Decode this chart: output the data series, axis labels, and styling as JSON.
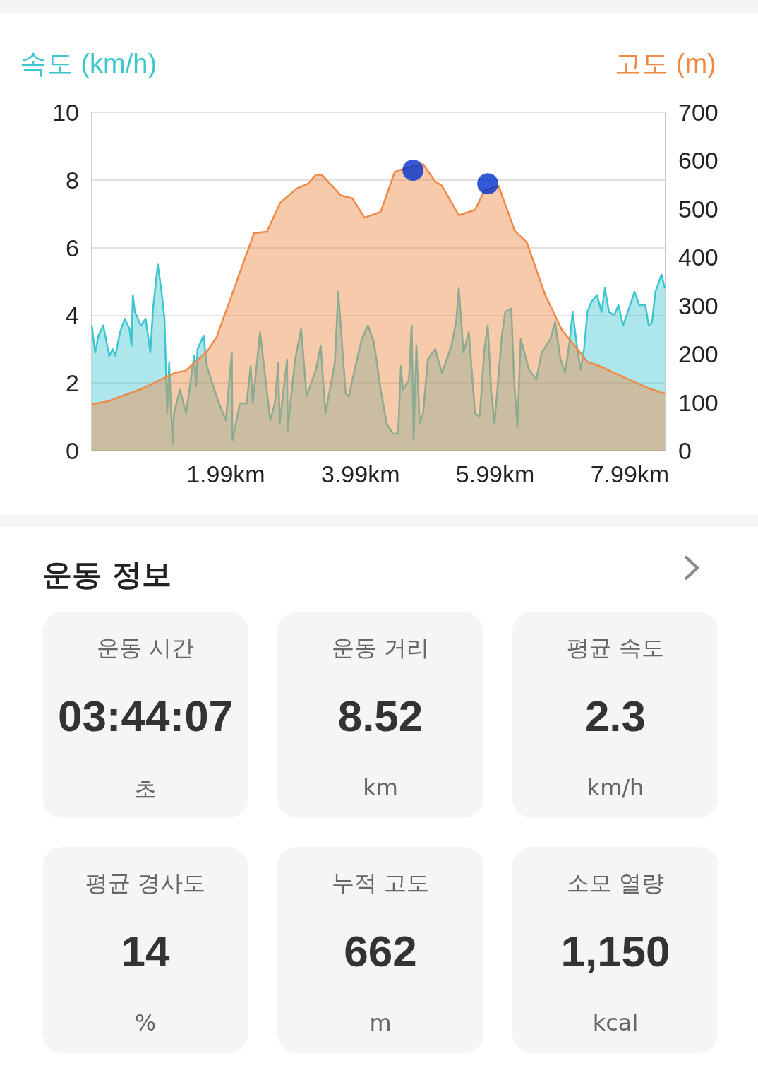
{
  "chart_data": [
    {
      "type": "area",
      "ylabel": "속도 (km/h)",
      "y2label": "고도 (m)",
      "xlim": [
        0,
        8.52
      ],
      "xticks": [
        {
          "value": 1.99,
          "label": "1.99km"
        },
        {
          "value": 3.99,
          "label": "3.99km"
        },
        {
          "value": 5.99,
          "label": "5.99km"
        },
        {
          "value": 7.99,
          "label": "7.99km"
        }
      ],
      "ylim": [
        0,
        10
      ],
      "yticks": [
        0,
        2,
        4,
        6,
        8,
        10
      ],
      "y2lim": [
        0,
        700
      ],
      "y2ticks": [
        0,
        100,
        200,
        300,
        400,
        500,
        600,
        700
      ],
      "grid": "y",
      "marker": "none",
      "series": [
        {
          "type": "area",
          "color": "#3cc6d0",
          "x": [
            0,
            0.05,
            0.1,
            0.17,
            0.26,
            0.31,
            0.35,
            0.42,
            0.49,
            0.56,
            0.59,
            0.61,
            0.64,
            0.73,
            0.8,
            0.87,
            0.91,
            0.98,
            1.03,
            1.08,
            1.12,
            1.15,
            1.2,
            1.22,
            1.31,
            1.4,
            1.52,
            1.55,
            1.57,
            1.66,
            1.71,
            1.82,
            1.89,
            1.99,
            2.08,
            2.09,
            2.2,
            2.3,
            2.36,
            2.39,
            2.5,
            2.65,
            2.72,
            2.77,
            2.79,
            2.9,
            2.91,
            2.97,
            3.02,
            3.11,
            3.19,
            3.33,
            3.4,
            3.47,
            3.61,
            3.66,
            3.77,
            3.82,
            3.87,
            4.01,
            4.1,
            4.19,
            4.29,
            4.38,
            4.47,
            4.55,
            4.59,
            4.62,
            4.71,
            4.75,
            4.78,
            4.82,
            4.87,
            4.92,
            4.99,
            5.1,
            5.2,
            5.34,
            5.41,
            5.45,
            5.52,
            5.6,
            5.69,
            5.76,
            5.83,
            5.88,
            5.93,
            5.98,
            6.09,
            6.14,
            6.23,
            6.27,
            6.32,
            6.37,
            6.49,
            6.6,
            6.68,
            6.81,
            6.88,
            6.96,
            7.03,
            7.1,
            7.14,
            7.21,
            7.26,
            7.31,
            7.36,
            7.42,
            7.5,
            7.57,
            7.62,
            7.68,
            7.76,
            7.82,
            7.89,
            7.96,
            8.06,
            8.13,
            8.22,
            8.27,
            8.32,
            8.37,
            8.46,
            8.51
          ],
          "values": [
            3.7,
            2.9,
            3.4,
            3.7,
            2.8,
            3.0,
            2.8,
            3.5,
            3.9,
            3.6,
            3.1,
            4.6,
            4.1,
            3.7,
            3.9,
            2.9,
            4.2,
            5.5,
            4.8,
            3.9,
            1.1,
            2.6,
            0.2,
            1.1,
            1.8,
            1.1,
            2.8,
            1.9,
            3.0,
            3.4,
            2.5,
            1.8,
            1.4,
            0.9,
            2.9,
            0.3,
            1.4,
            1.4,
            2.5,
            1.4,
            3.5,
            0.9,
            1.4,
            2.6,
            0.8,
            2.7,
            0.6,
            1.8,
            2.7,
            3.6,
            1.6,
            2.4,
            3.1,
            1.1,
            2.6,
            4.7,
            1.7,
            1.6,
            2.1,
            3.3,
            3.7,
            3.2,
            1.8,
            0.8,
            0.5,
            0.5,
            2.5,
            1.8,
            2.1,
            3.7,
            0.3,
            3.1,
            0.8,
            1.1,
            2.7,
            3.0,
            2.3,
            3.1,
            3.8,
            4.8,
            2.9,
            3.5,
            1.1,
            1.0,
            3.0,
            3.7,
            1.8,
            0.8,
            3.4,
            4.1,
            4.2,
            2.1,
            0.7,
            3.3,
            2.4,
            2.1,
            2.9,
            3.3,
            3.8,
            2.7,
            2.3,
            3.3,
            4.1,
            3.0,
            2.4,
            3.0,
            4.1,
            4.4,
            4.6,
            4.1,
            4.8,
            4.1,
            4.0,
            4.3,
            3.7,
            4.1,
            4.7,
            4.3,
            4.3,
            3.7,
            3.8,
            4.7,
            5.2,
            4.8
          ]
        },
        {
          "type": "area",
          "color": "#ee8a48",
          "axis": "y2",
          "x": [
            0,
            0.24,
            0.76,
            1.23,
            1.39,
            1.71,
            1.85,
            2.06,
            2.27,
            2.41,
            2.6,
            2.8,
            3.04,
            3.21,
            3.33,
            3.42,
            3.7,
            3.87,
            4.05,
            4.29,
            4.5,
            4.61,
            4.92,
            5.1,
            5.2,
            5.45,
            5.69,
            5.83,
            6.04,
            6.28,
            6.46,
            6.73,
            6.98,
            7.12,
            7.36,
            7.54,
            7.93,
            8.27,
            8.51
          ],
          "values": [
            96,
            102,
            129,
            161,
            165,
            205,
            234,
            314,
            396,
            450,
            453,
            513,
            542,
            552,
            571,
            570,
            528,
            522,
            482,
            494,
            577,
            582,
            593,
            557,
            548,
            487,
            498,
            538,
            548,
            455,
            431,
            323,
            250,
            226,
            184,
            175,
            150,
            129,
            118
          ]
        },
        {
          "type": "scatter",
          "color": "#0030cc",
          "axis": "y2",
          "marker": "circle",
          "x": [
            4.77,
            5.88
          ],
          "values": [
            580,
            552
          ]
        }
      ]
    },
    {
      "type": "other",
      "title": "운동 정보",
      "annotations": [
        "운동 시간",
        "03:44:07",
        "초",
        "운동 거리",
        "8.52",
        "km",
        "평균 속도",
        "2.3",
        "km/h",
        "평균 경사도",
        "14",
        "%",
        "누적 고도",
        "662",
        "m",
        "소모 열량",
        "1,150",
        "kcal"
      ]
    }
  ]
}
